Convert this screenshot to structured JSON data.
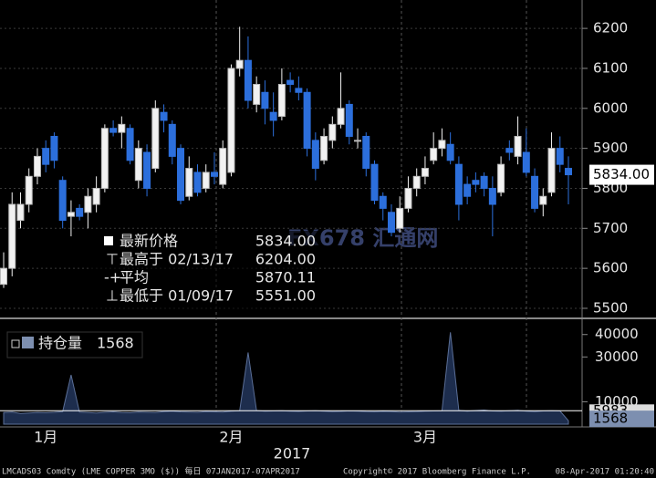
{
  "chart_data": {
    "type": "candlestick",
    "categories": [
      null,
      null,
      null,
      null,
      null,
      "1月",
      null,
      null,
      null,
      null,
      null,
      null,
      null,
      null,
      null,
      null,
      null,
      null,
      null,
      null,
      null,
      null,
      null,
      null,
      null,
      null,
      null,
      "2月",
      null,
      null,
      null,
      null,
      null,
      null,
      null,
      null,
      null,
      null,
      null,
      null,
      null,
      null,
      null,
      null,
      null,
      null,
      null,
      null,
      null,
      null,
      "3月",
      null,
      null,
      null,
      null,
      null,
      null,
      null,
      null,
      null,
      null,
      null,
      null,
      null,
      null,
      null,
      null,
      null
    ],
    "open": [
      5560,
      5600,
      5720,
      5760,
      5830,
      5900,
      5930,
      5820,
      5730,
      5750,
      5740,
      5760,
      5800,
      5950,
      5940,
      5950,
      5820,
      5890,
      5850,
      5990,
      5960,
      5900,
      5780,
      5840,
      5800,
      5840,
      5810,
      5840,
      6100,
      6120,
      6010,
      6040,
      5990,
      5980,
      6070,
      6050,
      6040,
      5920,
      5870,
      5920,
      5960,
      6010,
      5920,
      5930,
      5860,
      5780,
      5740,
      5700,
      5750,
      5800,
      5830,
      5870,
      5900,
      5910,
      5860,
      5810,
      5820,
      5830,
      5800,
      5790,
      5900,
      5880,
      5890,
      5830,
      5760,
      5790,
      5900,
      5850
    ],
    "high": [
      5640,
      5790,
      5790,
      5850,
      5900,
      5920,
      5940,
      5830,
      5770,
      5760,
      5800,
      5830,
      5960,
      5970,
      5980,
      5960,
      5920,
      5910,
      6020,
      6010,
      5970,
      5910,
      5880,
      5860,
      5860,
      5890,
      5920,
      6110,
      6204,
      6180,
      6080,
      6070,
      6040,
      6100,
      6090,
      6080,
      6050,
      5940,
      5950,
      5980,
      6090,
      6020,
      5950,
      5940,
      5870,
      5790,
      5760,
      5780,
      5830,
      5850,
      5880,
      5940,
      5950,
      5940,
      5880,
      5830,
      5840,
      5840,
      5830,
      5880,
      5920,
      5980,
      5950,
      5850,
      5800,
      5940,
      5930,
      5880
    ],
    "low": [
      5551,
      5580,
      5700,
      5740,
      5810,
      5840,
      5850,
      5700,
      5680,
      5720,
      5700,
      5740,
      5790,
      5930,
      5900,
      5860,
      5800,
      5780,
      5840,
      5940,
      5860,
      5760,
      5770,
      5780,
      5790,
      5810,
      5800,
      5830,
      6080,
      6000,
      5990,
      5960,
      5930,
      5970,
      6040,
      6020,
      5880,
      5820,
      5860,
      5900,
      5950,
      5910,
      5900,
      5830,
      5760,
      5720,
      5680,
      5690,
      5740,
      5780,
      5810,
      5860,
      5880,
      5860,
      5720,
      5760,
      5790,
      5780,
      5680,
      5780,
      5870,
      5860,
      5830,
      5740,
      5730,
      5780,
      5840,
      5760
    ],
    "close": [
      5600,
      5760,
      5760,
      5830,
      5880,
      5860,
      5870,
      5720,
      5740,
      5730,
      5780,
      5800,
      5950,
      5940,
      5960,
      5870,
      5900,
      5800,
      6000,
      5970,
      5880,
      5770,
      5850,
      5790,
      5840,
      5830,
      5900,
      6100,
      6120,
      6020,
      6060,
      6000,
      5970,
      6060,
      6060,
      6040,
      5900,
      5850,
      5930,
      5960,
      6000,
      5930,
      5920,
      5850,
      5770,
      5750,
      5690,
      5750,
      5800,
      5830,
      5850,
      5900,
      5920,
      5870,
      5760,
      5780,
      5810,
      5800,
      5760,
      5860,
      5890,
      5930,
      5840,
      5750,
      5780,
      5900,
      5860,
      5834
    ],
    "up_color": "#f2f2f2",
    "down_color": "#2c6fdc",
    "ylim": [
      5484,
      6271
    ],
    "yticks": [
      5500,
      5600,
      5700,
      5800,
      5900,
      6000,
      6100,
      6200
    ],
    "grid": true,
    "last_price": {
      "value": 5834,
      "label": "5834.00"
    },
    "year": "2017",
    "info": [
      {
        "label": "最新价格",
        "value": "5834.00"
      },
      {
        "label": "最高于 02/13/17",
        "value": "6204.00"
      },
      {
        "label": "平均",
        "value": "5870.11"
      },
      {
        "label": "最低于 01/09/17",
        "value": "5551.00"
      }
    ],
    "open_interest": {
      "type": "area",
      "legend": "持仓量",
      "last": 1568,
      "color": "#1d2d4d",
      "line_color": "#5a6e96",
      "values": [
        5200,
        5400,
        4800,
        5000,
        5200,
        5100,
        5300,
        5600,
        22000,
        5400,
        5200,
        5000,
        5300,
        5500,
        5200,
        5100,
        5400,
        5300,
        5200,
        5600,
        5800,
        5500,
        5400,
        5300,
        5600,
        5500,
        5400,
        5800,
        6000,
        32000,
        6100,
        5800,
        5900,
        6000,
        5800,
        5700,
        5900,
        6000,
        5800,
        5600,
        5700,
        5900,
        5800,
        5600,
        5500,
        5700,
        5600,
        5400,
        5500,
        5600,
        5800,
        5900,
        6000,
        41000,
        6200,
        5800,
        6100,
        6300,
        5900,
        5800,
        6000,
        6200,
        5800,
        5600,
        5900,
        6000,
        5900,
        1568
      ],
      "reference": {
        "value": 5983,
        "color": "#ffffff"
      },
      "ylim": [
        0,
        46000
      ],
      "yticks": [
        10000,
        30000,
        40000
      ]
    }
  },
  "watermark": "FX678 汇通网",
  "footer": {
    "left": "LMCADS03 Comdty (LME COPPER    3MO ($))  每日 07JAN2017-07APR2017",
    "center": "Copyright© 2017 Bloomberg Finance L.P.",
    "right": "08-Apr-2017 01:20:40"
  }
}
